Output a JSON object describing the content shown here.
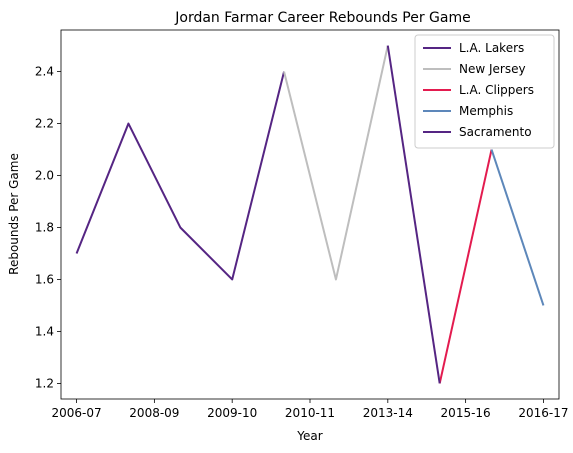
{
  "chart_data": {
    "type": "line",
    "title": "Jordan Farmar Career Rebounds Per Game",
    "xlabel": "Year",
    "ylabel": "Rebounds Per Game",
    "x_tick_labels": [
      "2006-07",
      "2008-09",
      "2009-10",
      "2010-11",
      "2013-14",
      "2015-16",
      "2016-17"
    ],
    "y_tick_labels": [
      "1.2",
      "1.4",
      "1.6",
      "1.8",
      "2.0",
      "2.2",
      "2.4"
    ],
    "y_ticks": [
      1.2,
      1.4,
      1.6,
      1.8,
      2.0,
      2.2,
      2.4
    ],
    "ylim": [
      1.14,
      2.56
    ],
    "xlim": [
      -0.3,
      9.3
    ],
    "grid": false,
    "legend_position": "top-right",
    "series": [
      {
        "name": "L.A. Lakers",
        "color": "#552583",
        "x": [
          0,
          1,
          2,
          3,
          4
        ],
        "values": [
          1.7,
          2.2,
          1.8,
          1.6,
          2.4
        ]
      },
      {
        "name": "New Jersey",
        "color": "#BEBEBE",
        "x": [
          4,
          5,
          6
        ],
        "values": [
          2.4,
          1.6,
          2.5
        ]
      },
      {
        "name": "L.A. Clippers",
        "color": "#E31B4F",
        "x": [
          7,
          8
        ],
        "values": [
          1.2,
          2.1
        ]
      },
      {
        "name": "Memphis",
        "color": "#5D87BA",
        "x": [
          8,
          9
        ],
        "values": [
          2.1,
          1.5
        ]
      },
      {
        "name": "Sacramento",
        "color": "#552583",
        "x": [
          6,
          7
        ],
        "values": [
          2.5,
          1.2
        ]
      }
    ]
  }
}
